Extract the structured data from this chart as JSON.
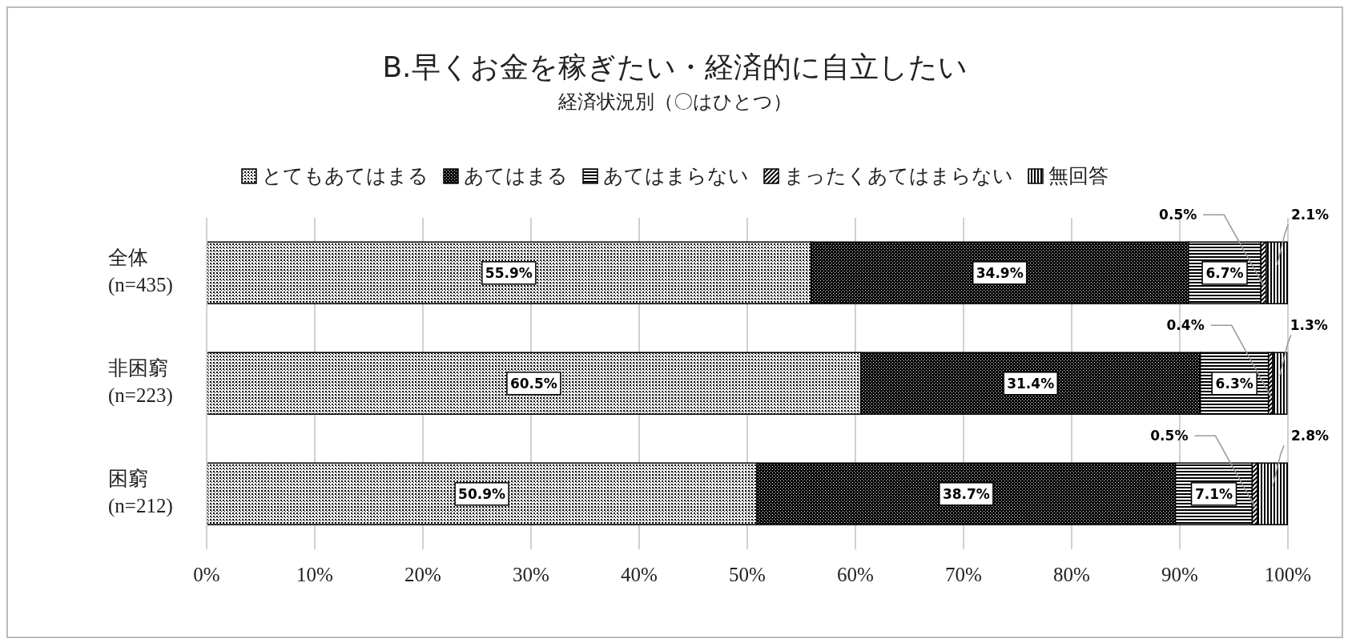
{
  "chart_data": {
    "type": "bar",
    "orientation": "horizontal",
    "stacked": true,
    "title": "B.早くお金を稼ぎたい・経済的に自立したい",
    "subtitle": "経済状況別（〇はひとつ）",
    "categories": [
      "全体\n(n=435)",
      "非困窮\n(n=223)",
      "困窮\n(n=212)"
    ],
    "series": [
      {
        "name": "とてもあてはまる",
        "color": "#000000",
        "values": [
          55.9,
          60.5,
          50.9
        ],
        "value_labels": [
          "55.9%",
          "60.5%",
          "50.9%"
        ]
      },
      {
        "name": "あてはまる",
        "color": "#000000",
        "values": [
          34.9,
          31.4,
          38.7
        ],
        "value_labels": [
          "34.9%",
          "31.4%",
          "38.7%"
        ]
      },
      {
        "name": "あてはまらない",
        "color": "#000000",
        "values": [
          6.7,
          6.3,
          7.1
        ],
        "value_labels": [
          "6.7%",
          "6.3%",
          "7.1%"
        ]
      },
      {
        "name": "まったくあてはまらない",
        "color": "#000000",
        "values": [
          0.5,
          0.4,
          0.5
        ],
        "value_labels": [
          "0.5%",
          "0.4%",
          "0.5%"
        ]
      },
      {
        "name": "無回答",
        "color": "#000000",
        "values": [
          2.1,
          1.3,
          2.8
        ],
        "value_labels": [
          "2.1%",
          "1.3%",
          "2.8%"
        ]
      }
    ],
    "xlim": [
      0,
      100
    ],
    "xticks": [
      {
        "value": 0,
        "label": "0%"
      },
      {
        "value": 10,
        "label": "10%"
      },
      {
        "value": 20,
        "label": "20%"
      },
      {
        "value": 30,
        "label": "30%"
      },
      {
        "value": 40,
        "label": "40%"
      },
      {
        "value": 50,
        "label": "50%"
      },
      {
        "value": 60,
        "label": "60%"
      },
      {
        "value": 70,
        "label": "70%"
      },
      {
        "value": 80,
        "label": "80%"
      },
      {
        "value": 90,
        "label": "90%"
      },
      {
        "value": 100,
        "label": "100%"
      }
    ],
    "grid": "x",
    "legend": "top"
  }
}
